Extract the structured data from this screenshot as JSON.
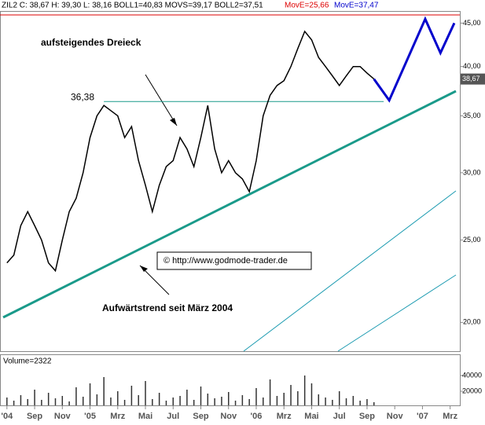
{
  "chart_data": {
    "type": "line",
    "header": "ZIL2 C: 38,67 H: 39,30 L: 38,16 BOLL1=40,83 MOVS=39,17 BOLL2=37,51",
    "header_move1": "MovE=25,66",
    "header_move2": "MovE=37,47",
    "last_label": "38,67",
    "annotations": [
      "aufsteigendes Dreieck",
      "Aufwärtstrend seit März 2004",
      "© http://www.godmode-trader.de"
    ],
    "resistance": {
      "value": 36.38,
      "label": "36,38"
    },
    "log_scale": true,
    "xlim": [
      -0.5,
      32.7
    ],
    "xticks": [
      {
        "value": 0,
        "label": "'04"
      },
      {
        "value": 2,
        "label": "Sep"
      },
      {
        "value": 4,
        "label": "Nov"
      },
      {
        "value": 6,
        "label": "'05"
      },
      {
        "value": 8,
        "label": "Mrz"
      },
      {
        "value": 10,
        "label": "Mai"
      },
      {
        "value": 12,
        "label": "Jul"
      },
      {
        "value": 14,
        "label": "Sep"
      },
      {
        "value": 16,
        "label": "Nov"
      },
      {
        "value": 18,
        "label": "'06"
      },
      {
        "value": 20,
        "label": "Mrz"
      },
      {
        "value": 22,
        "label": "Mai"
      },
      {
        "value": 24,
        "label": "Jul"
      },
      {
        "value": 26,
        "label": "Sep"
      },
      {
        "value": 28,
        "label": "Nov"
      },
      {
        "value": 30,
        "label": "'07"
      },
      {
        "value": 32,
        "label": "Mrz"
      }
    ],
    "ylim": [
      18.5,
      46.4
    ],
    "yticks": [
      {
        "value": 20,
        "label": "20,00"
      },
      {
        "value": 25,
        "label": "25,00"
      },
      {
        "value": 30,
        "label": "30,00"
      },
      {
        "value": 35,
        "label": "35,00"
      },
      {
        "value": 40,
        "label": "40,00"
      },
      {
        "value": 45,
        "label": "45,00"
      }
    ],
    "x": [
      0,
      0.5,
      1,
      1.5,
      2,
      2.5,
      3,
      3.5,
      4,
      4.5,
      5,
      5.5,
      6,
      6.5,
      7,
      7.5,
      8,
      8.5,
      9,
      9.5,
      10,
      10.5,
      11,
      11.5,
      12,
      12.5,
      13,
      13.5,
      14,
      14.5,
      15,
      15.5,
      16,
      16.5,
      17,
      17.5,
      18,
      18.5,
      19,
      19.5,
      20,
      20.5,
      21,
      21.5,
      22,
      22.5,
      23,
      23.5,
      24,
      24.5,
      25,
      25.5,
      26,
      26.5
    ],
    "series": [
      {
        "color": "#000000",
        "values": [
          23.5,
          24,
          26,
          27,
          26,
          25,
          23.5,
          23,
          25,
          27,
          28,
          30,
          33,
          35,
          36,
          35.5,
          35,
          33,
          34,
          31,
          29,
          27,
          29,
          30.5,
          31,
          33,
          32,
          30.5,
          33,
          36,
          32,
          30,
          31,
          30,
          29.5,
          28.5,
          31,
          35,
          37,
          38,
          38.5,
          40,
          42,
          44,
          43,
          41,
          40,
          39,
          38,
          39,
          40,
          40,
          39.3,
          38.67
        ]
      }
    ],
    "projection": {
      "color": "#0000cc",
      "x": [
        26.5,
        27.6,
        30.2,
        31.3,
        32.3
      ],
      "values": [
        38.67,
        36.5,
        45.5,
        41.5,
        45
      ]
    },
    "volume": {
      "label": "Volume=2322",
      "ylim": [
        0,
        65000
      ],
      "yticks": [
        20000,
        40000
      ],
      "values": [
        12000,
        8000,
        15000,
        10000,
        22000,
        9000,
        18000,
        11000,
        14000,
        7000,
        25000,
        13000,
        30000,
        16000,
        38000,
        12000,
        20000,
        9000,
        27000,
        15000,
        33000,
        10000,
        18000,
        8000,
        12000,
        14000,
        22000,
        9000,
        26000,
        17000,
        11000,
        13000,
        19000,
        8000,
        15000,
        10000,
        24000,
        12000,
        35000,
        14000,
        18000,
        28000,
        20000,
        40000,
        30000,
        16000,
        12000,
        9000,
        20000,
        11000,
        14000,
        8000,
        10000,
        6000
      ]
    }
  }
}
